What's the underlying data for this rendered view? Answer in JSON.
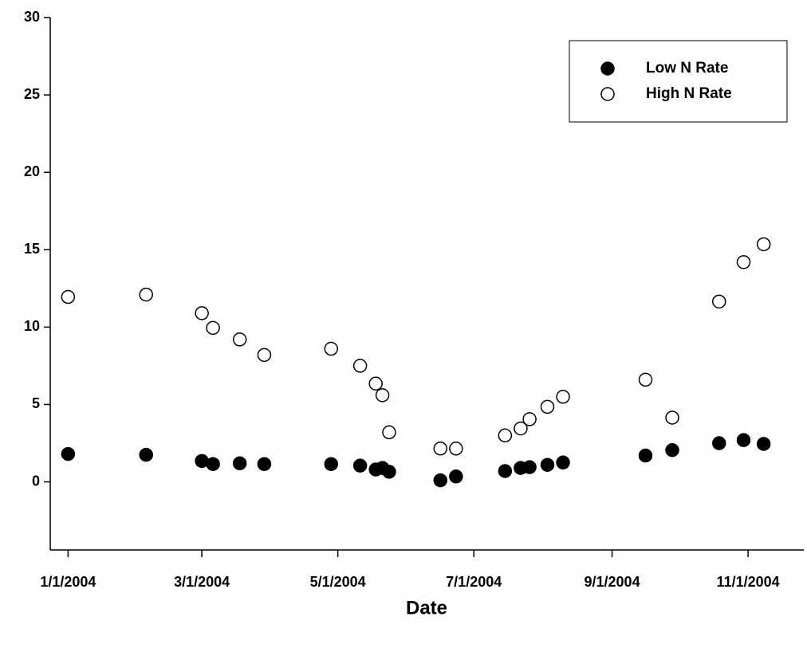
{
  "chart_data": {
    "type": "scatter",
    "x_label": "Date",
    "xlim": [
      "12/24/2003",
      "11/26/2004"
    ],
    "xticks": [
      "1/1/2004",
      "3/1/2004",
      "5/1/2004",
      "7/1/2004",
      "9/1/2004",
      "11/1/2004"
    ],
    "ylim": [
      -4.4,
      30
    ],
    "yticks": [
      0,
      5,
      10,
      15,
      20,
      25,
      30
    ],
    "legend": "upper right",
    "x": [
      "1/1/2004",
      "2/5/2004",
      "3/1/2004",
      "3/6/2004",
      "3/18/2004",
      "3/29/2004",
      "4/28/2004",
      "5/11/2004",
      "5/18/2004",
      "5/21/2004",
      "5/24/2004",
      "6/16/2004",
      "6/23/2004",
      "7/15/2004",
      "7/22/2004",
      "7/26/2004",
      "8/3/2004",
      "8/10/2004",
      "9/16/2004",
      "9/28/2004",
      "10/19/2004",
      "10/30/2004",
      "11/8/2004"
    ],
    "series": [
      {
        "name": "Low N Rate",
        "color": "#000000",
        "marker": "filled",
        "values": [
          1.8,
          1.75,
          1.35,
          1.15,
          1.2,
          1.15,
          1.15,
          1.05,
          0.8,
          0.9,
          0.65,
          0.1,
          0.35,
          0.7,
          0.9,
          0.95,
          1.1,
          1.25,
          1.7,
          2.05,
          2.5,
          2.7,
          2.45
        ]
      },
      {
        "name": "High N Rate",
        "color": "#000000",
        "marker": "open",
        "values": [
          11.95,
          12.1,
          10.9,
          9.95,
          9.2,
          8.2,
          8.6,
          7.5,
          6.35,
          5.6,
          3.2,
          2.15,
          2.15,
          3.0,
          3.45,
          4.05,
          4.85,
          5.5,
          6.6,
          4.15,
          11.65,
          14.2,
          15.35
        ]
      }
    ]
  }
}
